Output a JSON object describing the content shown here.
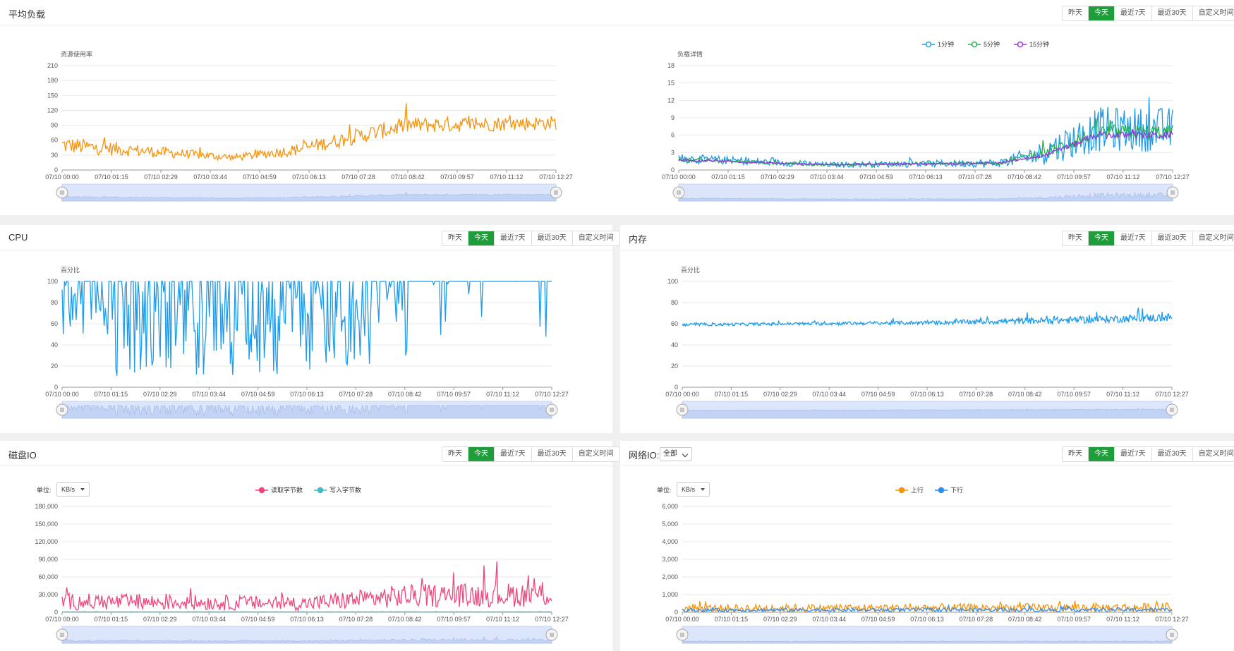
{
  "time_range_buttons": [
    "昨天",
    "今天",
    "最近7天",
    "最近30天",
    "自定义时间"
  ],
  "active_range_index": 1,
  "x_ticks": [
    "07/10 00:00",
    "07/10 01:15",
    "07/10 02:29",
    "07/10 03:44",
    "07/10 04:59",
    "07/10 06:13",
    "07/10 07:28",
    "07/10 08:42",
    "07/10 09:57",
    "07/10 11:12",
    "07/10 12:27"
  ],
  "panels": {
    "load": {
      "title": "平均负载"
    },
    "cpu": {
      "title": "CPU"
    },
    "memory": {
      "title": "内存"
    },
    "disk": {
      "title": "磁盘IO",
      "unit_label": "单位:",
      "unit_value": "KB/s"
    },
    "network": {
      "title": "网络IO:",
      "filter_value": "全部",
      "unit_label": "单位:",
      "unit_value": "KB/s"
    }
  },
  "colors": {
    "accent": "#1f9d3a",
    "orange": "#f7930a",
    "blue": "#1e9be9",
    "green": "#1fb34a",
    "purple": "#9933e0",
    "pink": "#f0447a",
    "teal": "#41bcc6",
    "blue_line": "#2f8ef0"
  },
  "chart_data": [
    {
      "id": "resource",
      "type": "line",
      "ylabel": "资源使用率",
      "ylim": [
        0,
        210
      ],
      "yticks": [
        0,
        30,
        60,
        90,
        120,
        150,
        180,
        210
      ],
      "series": [
        {
          "color": "#f7930a",
          "segments": [
            [
              0,
              50,
              0.35
            ],
            [
              0.35,
              25,
              0.28
            ],
            [
              0.47,
              40,
              0.3
            ],
            [
              0.7,
              90,
              0.18
            ],
            [
              1,
              95,
              0.15
            ]
          ]
        }
      ]
    },
    {
      "id": "load-detail",
      "type": "line",
      "ylabel": "负载详情",
      "ylim": [
        0,
        18
      ],
      "yticks": [
        0,
        3,
        6,
        9,
        12,
        15,
        18
      ],
      "series": [
        {
          "name": "1分钟",
          "color": "#1e9be9",
          "segments": [
            [
              0,
              2,
              0.4
            ],
            [
              0.3,
              0.9,
              0.5
            ],
            [
              0.65,
              1.2,
              0.6
            ],
            [
              0.74,
              3,
              0.7
            ],
            [
              0.85,
              7,
              0.55
            ],
            [
              1,
              7,
              0.55
            ]
          ]
        },
        {
          "name": "5分钟",
          "color": "#1fb34a",
          "segments": [
            [
              0,
              1.8,
              0.2
            ],
            [
              0.3,
              0.9,
              0.25
            ],
            [
              0.65,
              1.2,
              0.25
            ],
            [
              0.74,
              3,
              0.3
            ],
            [
              0.85,
              6.5,
              0.2
            ],
            [
              1,
              6.5,
              0.2
            ]
          ]
        },
        {
          "name": "15分钟",
          "color": "#9933e0",
          "segments": [
            [
              0,
              1.7,
              0.1
            ],
            [
              0.3,
              0.9,
              0.1
            ],
            [
              0.65,
              1.2,
              0.1
            ],
            [
              0.74,
              2.5,
              0.1
            ],
            [
              0.85,
              6.0,
              0.1
            ],
            [
              1,
              6.0,
              0.1
            ]
          ]
        }
      ]
    },
    {
      "id": "cpu",
      "type": "line",
      "ylabel": "百分比",
      "ylim": [
        0,
        100
      ],
      "yticks": [
        0,
        20,
        40,
        60,
        80,
        100
      ],
      "series": [
        {
          "color": "#1e9be9",
          "mode": "cpu"
        }
      ]
    },
    {
      "id": "memory",
      "type": "line",
      "ylabel": "百分比",
      "ylim": [
        0,
        100
      ],
      "yticks": [
        0,
        20,
        40,
        60,
        80,
        100
      ],
      "series": [
        {
          "color": "#1e9be9",
          "segments": [
            [
              0,
              59,
              0.02
            ],
            [
              0.5,
              61,
              0.03
            ],
            [
              0.75,
              63,
              0.05
            ],
            [
              1,
              66,
              0.06
            ]
          ]
        }
      ]
    },
    {
      "id": "disk",
      "type": "line",
      "ylim": [
        0,
        180000
      ],
      "yticks": [
        0,
        30000,
        60000,
        90000,
        120000,
        150000,
        180000
      ],
      "yticklabels": [
        "0",
        "30,000",
        "60,000",
        "90,000",
        "120,000",
        "150,000",
        "180,000"
      ],
      "series": [
        {
          "name": "读取字节数",
          "color": "#f0447a",
          "segments": [
            [
              0,
              18000,
              0.8
            ],
            [
              0.5,
              15000,
              0.8
            ],
            [
              0.7,
              28000,
              0.7
            ],
            [
              1,
              30000,
              0.7
            ]
          ]
        },
        {
          "name": "写入字节数",
          "color": "#41bcc6",
          "segments": [
            [
              0,
              500,
              0.5
            ],
            [
              1,
              500,
              0.5
            ]
          ]
        }
      ]
    },
    {
      "id": "network",
      "type": "line",
      "ylim": [
        0,
        6000
      ],
      "yticks": [
        0,
        1000,
        2000,
        3000,
        4000,
        5000,
        6000
      ],
      "yticklabels": [
        "0",
        "1,000",
        "2,000",
        "3,000",
        "4,000",
        "5,000",
        "6,000"
      ],
      "series": [
        {
          "name": "上行",
          "color": "#f7930a",
          "segments": [
            [
              0,
              220,
              1.0
            ],
            [
              1,
              260,
              1.0
            ]
          ]
        },
        {
          "name": "下行",
          "color": "#2f8ef0",
          "segments": [
            [
              0,
              120,
              0.8
            ],
            [
              1,
              140,
              0.8
            ]
          ]
        }
      ]
    }
  ]
}
